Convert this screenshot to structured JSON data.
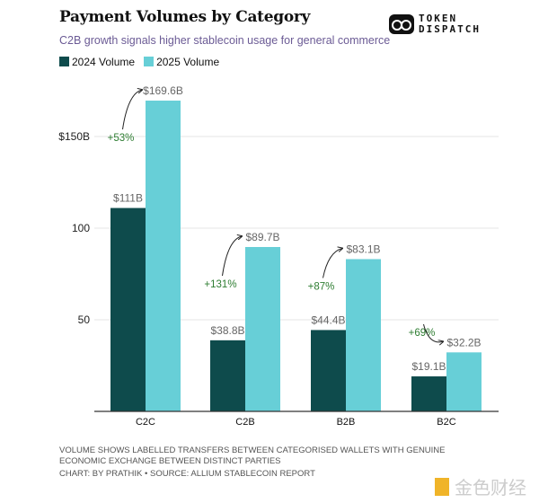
{
  "header": {
    "title": "Payment Volumes by Category",
    "subtitle": "C2B growth signals higher stablecoin usage for general commerce",
    "logo_text": [
      "TOKEN",
      "DISPATCH"
    ]
  },
  "colors": {
    "v2024": "#0e4b4c",
    "v2025": "#67cfd7",
    "growth": "#2e7d32"
  },
  "chart_data": {
    "type": "bar",
    "title": "Payment Volumes by Category",
    "categories": [
      "C2C",
      "C2B",
      "B2B",
      "B2C"
    ],
    "series": [
      {
        "name": "2024 Volume",
        "values": [
          111,
          38.8,
          44.4,
          19.1
        ],
        "labels": [
          "$111B",
          "$38.8B",
          "$44.4B",
          "$19.1B"
        ]
      },
      {
        "name": "2025 Volume",
        "values": [
          169.6,
          89.7,
          83.1,
          32.2
        ],
        "labels": [
          "$169.6B",
          "$89.7B",
          "$83.1B",
          "$32.2B"
        ]
      }
    ],
    "growth_labels": [
      "+53%",
      "+131%",
      "+87%",
      "+69%"
    ],
    "yticks": [
      {
        "value": 50,
        "label": "50"
      },
      {
        "value": 100,
        "label": "100"
      },
      {
        "value": 150,
        "label": "$150B"
      }
    ],
    "ylim": [
      0,
      175
    ],
    "grid": true,
    "legend": "top-left"
  },
  "footer": {
    "note": "VOLUME SHOWS LABELLED TRANSFERS BETWEEN CATEGORISED WALLETS WITH GENUINE ECONOMIC EXCHANGE BETWEEN DISTINCT PARTIES",
    "credit": "CHART: BY PRATHIK • SOURCE: ALLIUM STABLECOIN REPORT",
    "watermark": "金色财经"
  }
}
